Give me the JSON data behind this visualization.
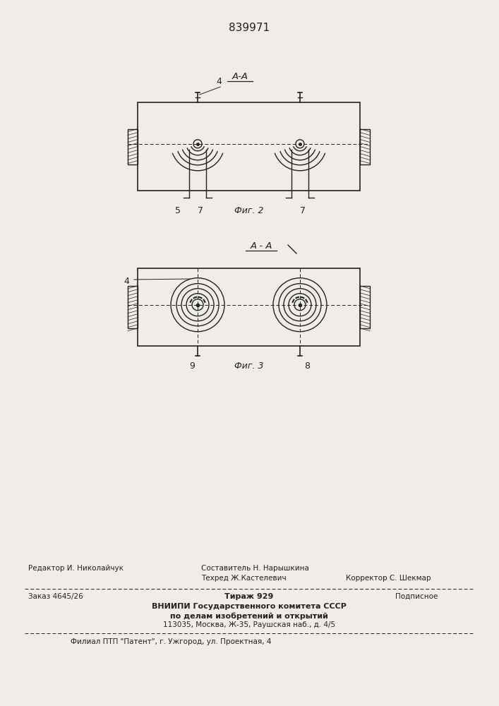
{
  "patent_number": "839971",
  "background_color": "#f0ede8",
  "fig2_label": "Фиг. 2",
  "fig3_label": "Фиг. 3",
  "aa_label1": "А-А",
  "aa_label2": "А - А",
  "label4_fig2": "4",
  "label5": "5",
  "label7a": "7",
  "label7b": "7",
  "label4_fig3": "4",
  "label9": "9",
  "label8": "8",
  "footer_line1_left": "Редактор И. Николайчук",
  "footer_line1_mid": "Составитель Н. Нарышкина",
  "footer_line2_mid": "Техред Ж.Кастелевич",
  "footer_line2_right": "Корректор С. Шекмар",
  "footer_line3_left": "Заказ 4645/26",
  "footer_line3_mid": "Тираж 929",
  "footer_line3_right": "Подписное",
  "footer_line4": "ВНИИПИ Государственного комитета СССР",
  "footer_line5": "по делам изобретений и открытий",
  "footer_line6": "113035, Москва, Ж-35, Раушская наб., д. 4/5",
  "footer_last": "Филиал ПТП \"Патент\", г. Ужгород, ул. Проектная, 4"
}
